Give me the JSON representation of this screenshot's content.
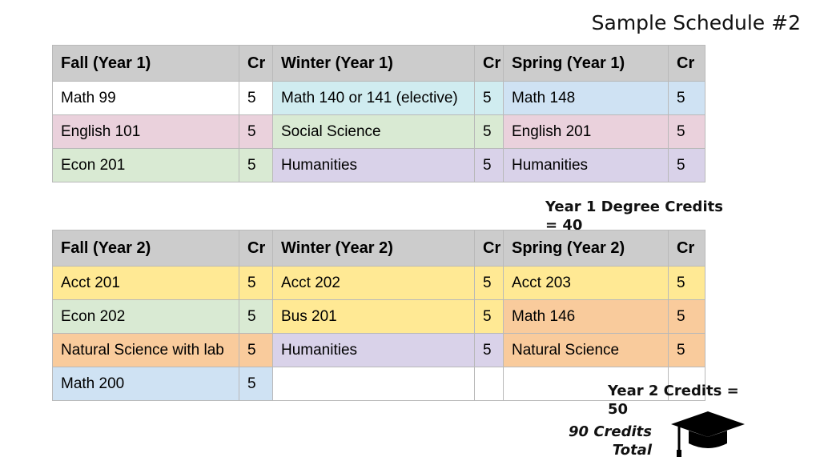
{
  "title": "Sample Schedule #2",
  "colors": {
    "header": "#cccccc",
    "white": "#ffffff",
    "pink": "#ead1dc",
    "green": "#d9ead3",
    "cyan": "#d0ecf0",
    "purple": "#d9d2e9",
    "blue": "#cfe2f3",
    "yellow": "#ffe994",
    "orange": "#f9cb9c"
  },
  "year1": {
    "headers": [
      "Fall (Year 1)",
      "Cr",
      "Winter (Year 1)",
      "Cr",
      "Spring (Year 1)",
      "Cr"
    ],
    "rows": [
      [
        {
          "text": "Math 99",
          "color": "white"
        },
        {
          "text": "5",
          "color": "white"
        },
        {
          "text": "Math 140 or 141  (elective)",
          "color": "cyan"
        },
        {
          "text": "5",
          "color": "cyan"
        },
        {
          "text": "Math 148",
          "color": "blue"
        },
        {
          "text": "5",
          "color": "blue"
        }
      ],
      [
        {
          "text": "English 101",
          "color": "pink"
        },
        {
          "text": "5",
          "color": "pink"
        },
        {
          "text": "Social Science",
          "color": "green"
        },
        {
          "text": "5",
          "color": "green"
        },
        {
          "text": "English 201",
          "color": "pink"
        },
        {
          "text": "5",
          "color": "pink"
        }
      ],
      [
        {
          "text": "Econ 201",
          "color": "green"
        },
        {
          "text": "5",
          "color": "green"
        },
        {
          "text": "Humanities",
          "color": "purple"
        },
        {
          "text": "5",
          "color": "purple"
        },
        {
          "text": "Humanities",
          "color": "purple"
        },
        {
          "text": "5",
          "color": "purple"
        }
      ]
    ]
  },
  "year2": {
    "headers": [
      "Fall (Year 2)",
      "Cr",
      "Winter (Year 2)",
      "Cr",
      "Spring (Year 2)",
      "Cr"
    ],
    "rows": [
      [
        {
          "text": "Acct 201",
          "color": "yellow"
        },
        {
          "text": "5",
          "color": "yellow"
        },
        {
          "text": "Acct 202",
          "color": "yellow"
        },
        {
          "text": "5",
          "color": "yellow"
        },
        {
          "text": "Acct 203",
          "color": "yellow"
        },
        {
          "text": "5",
          "color": "yellow"
        }
      ],
      [
        {
          "text": "Econ 202",
          "color": "green"
        },
        {
          "text": "5",
          "color": "green"
        },
        {
          "text": "Bus 201",
          "color": "yellow"
        },
        {
          "text": "5",
          "color": "yellow"
        },
        {
          "text": "Math 146",
          "color": "orange"
        },
        {
          "text": "5",
          "color": "orange"
        }
      ],
      [
        {
          "text": "Natural Science with lab",
          "color": "orange"
        },
        {
          "text": "5",
          "color": "orange"
        },
        {
          "text": "Humanities",
          "color": "purple"
        },
        {
          "text": "5",
          "color": "purple"
        },
        {
          "text": "Natural Science",
          "color": "orange"
        },
        {
          "text": "5",
          "color": "orange"
        }
      ],
      [
        {
          "text": "Math 200",
          "color": "blue"
        },
        {
          "text": "5",
          "color": "blue"
        },
        {
          "text": "",
          "color": "white"
        },
        {
          "text": "",
          "color": "white"
        },
        {
          "text": "",
          "color": "white"
        },
        {
          "text": "",
          "color": "white"
        }
      ]
    ]
  },
  "notes": {
    "year1_credits": "Year 1 Degree Credits = 40",
    "year2_credits": "Year 2  Credits = 50",
    "total_credits": "90 Credits Total"
  },
  "icons": {
    "graduation": "graduation-cap-icon"
  }
}
